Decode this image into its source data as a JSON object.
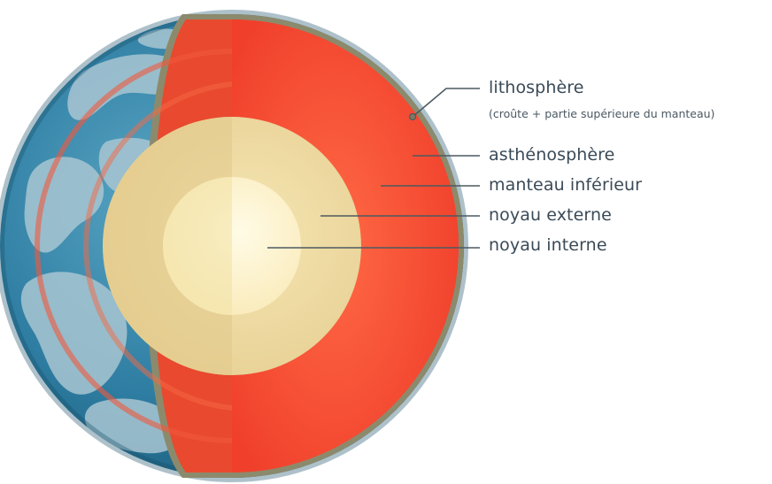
{
  "labels": {
    "lithosphere": "lithosphère",
    "lithosphere_note": "(croûte + partie supérieure du manteau)",
    "asthenosphere": "asthénosphère",
    "lower_mantle": "manteau inférieur",
    "outer_core": "noyau externe",
    "inner_core": "noyau interne"
  },
  "colors": {
    "ocean": "#2f7fa3",
    "land": "#a9c7d3",
    "crust_rim": "#8a8a6a",
    "asthenosphere": "#e84a3c",
    "mantle": "#ff4a32",
    "outer_core": "#ecd9a0",
    "inner_core": "#fff3c4",
    "leader": "#4c5a60"
  },
  "icons": {
    "marker": "circle-marker-icon"
  }
}
